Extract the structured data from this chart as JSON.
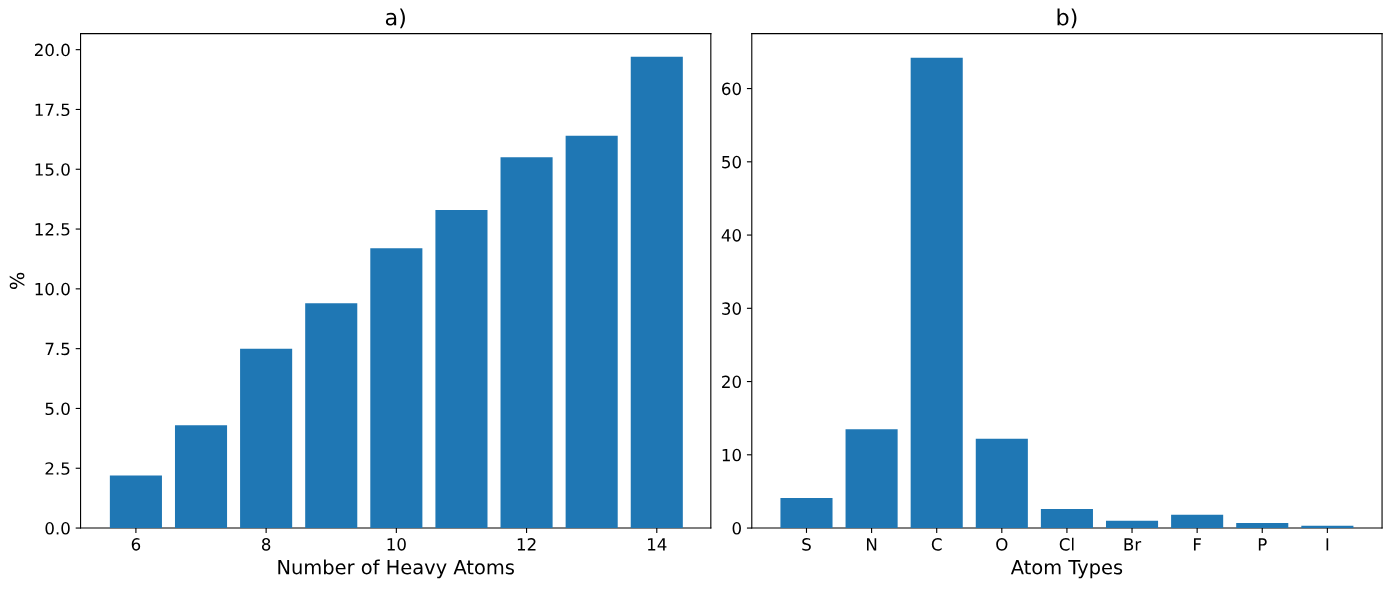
{
  "chart_data": [
    {
      "type": "bar",
      "title": "a)",
      "xlabel": "Number of Heavy Atoms",
      "ylabel": "%",
      "x": [
        6,
        7,
        8,
        9,
        10,
        11,
        12,
        13,
        14
      ],
      "values": [
        2.2,
        4.3,
        7.5,
        9.4,
        11.7,
        13.3,
        15.5,
        16.4,
        19.7
      ],
      "color": "#1f77b4",
      "xlim": [
        5.15,
        14.83
      ],
      "xticks": [
        6,
        8,
        10,
        12,
        14
      ],
      "ylim": [
        0,
        20.67
      ],
      "yticks": [
        {
          "value": 0,
          "label": "0.0"
        },
        {
          "value": 2.5,
          "label": "2.5"
        },
        {
          "value": 5,
          "label": "5.0"
        },
        {
          "value": 7.5,
          "label": "7.5"
        },
        {
          "value": 10,
          "label": "10.0"
        },
        {
          "value": 12.5,
          "label": "12.5"
        },
        {
          "value": 15,
          "label": "15.0"
        },
        {
          "value": 17.5,
          "label": "17.5"
        },
        {
          "value": 20,
          "label": "20.0"
        }
      ]
    },
    {
      "type": "bar",
      "title": "b)",
      "xlabel": "Atom Types",
      "categories": [
        "S",
        "N",
        "C",
        "O",
        "Cl",
        "Br",
        "F",
        "P",
        "I"
      ],
      "values": [
        4.1,
        13.5,
        64.2,
        12.2,
        2.6,
        1.0,
        1.8,
        0.7,
        0.3
      ],
      "color": "#1f77b4",
      "ylim": [
        0,
        67.5
      ],
      "yticks": [
        0,
        10,
        20,
        30,
        40,
        50,
        60
      ]
    }
  ]
}
